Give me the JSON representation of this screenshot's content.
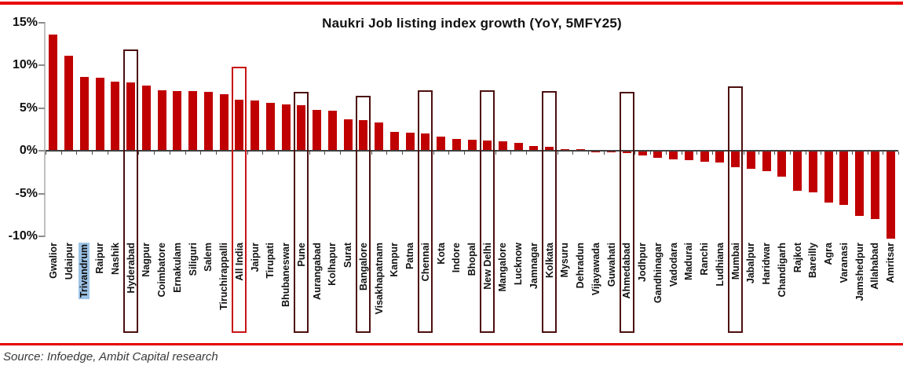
{
  "page": {
    "source": "Source: Infoedge, Ambit Capital research"
  },
  "chart_data": {
    "type": "bar",
    "title": "Naukri Job listing index  growth (YoY, 5MFY25)",
    "xlabel": "",
    "ylabel": "",
    "ylim": [
      -10,
      15
    ],
    "ytick_labels": [
      "15%",
      "10%",
      "5%",
      "0%",
      "-5%",
      "-10%"
    ],
    "ytick_values": [
      15,
      10,
      5,
      0,
      -5,
      -10
    ],
    "grid": false,
    "legend": "none",
    "categories": [
      "Gwalior",
      "Udaipur",
      "Trivandrum",
      "Raipur",
      "Nashik",
      "Hyderabad",
      "Nagpur",
      "Coimbatore",
      "Ernakulam",
      "Siliguri",
      "Salem",
      "Tiruchirappalli",
      "All India",
      "Jaipur",
      "Tirupati",
      "Bhubaneswar",
      "Pune",
      "Aurangabad",
      "Kolhapur",
      "Surat",
      "Bangalore",
      "Visakhapatnam",
      "Kanpur",
      "Patna",
      "Chennai",
      "Kota",
      "Indore",
      "Bhopal",
      "New Delhi",
      "Mangalore",
      "Lucknow",
      "Jamnagar",
      "Kolkata",
      "Mysuru",
      "Dehradun",
      "Vijayawada",
      "Guwahati",
      "Ahmedabad",
      "Jodhpur",
      "Gandhinagar",
      "Vadodara",
      "Madurai",
      "Ranchi",
      "Ludhiana",
      "Mumbai",
      "Jabalpur",
      "Haridwar",
      "Chandigarh",
      "Rajkot",
      "Bareilly",
      "Agra",
      "Varanasi",
      "Jamshedpur",
      "Allahabad",
      "Amritsar"
    ],
    "values": [
      13.5,
      11.0,
      8.5,
      8.4,
      8.0,
      7.9,
      7.5,
      7.0,
      6.9,
      6.9,
      6.8,
      6.5,
      5.9,
      5.8,
      5.5,
      5.3,
      5.2,
      4.7,
      4.6,
      3.6,
      3.5,
      3.2,
      2.1,
      2.0,
      1.9,
      1.6,
      1.3,
      1.2,
      1.1,
      1.0,
      0.8,
      0.5,
      0.4,
      0.0,
      0.0,
      -0.1,
      -0.1,
      -0.2,
      -0.5,
      -0.7,
      -0.9,
      -1.0,
      -1.2,
      -1.3,
      -1.8,
      -2.0,
      -2.3,
      -2.9,
      -4.6,
      -4.8,
      -6.0,
      -6.2,
      -7.5,
      -7.9,
      -10.2
    ],
    "highlight_boxes": [
      {
        "category": "Hyderabad",
        "top": 11.8,
        "style": "dark"
      },
      {
        "category": "All India",
        "top": 9.8,
        "style": "bright"
      },
      {
        "category": "Pune",
        "top": 6.9,
        "style": "dark"
      },
      {
        "category": "Bangalore",
        "top": 6.4,
        "style": "dark"
      },
      {
        "category": "Chennai",
        "top": 7.1,
        "style": "dark"
      },
      {
        "category": "New Delhi",
        "top": 7.1,
        "style": "dark"
      },
      {
        "category": "Kolkata",
        "top": 7.0,
        "style": "dark"
      },
      {
        "category": "Ahmedabad",
        "top": 6.9,
        "style": "dark"
      },
      {
        "category": "Mumbai",
        "top": 7.5,
        "style": "dark"
      }
    ],
    "label_highlight": {
      "category": "Trivandrum",
      "color": "#9DC3E6"
    },
    "colors": {
      "bar": "#C00000",
      "box_dark": "#4D0F0F",
      "box_bright": "#C81414",
      "rule_red": "#E60000",
      "zero_line": "#404040",
      "axis_line": "#BFBFBF"
    }
  }
}
